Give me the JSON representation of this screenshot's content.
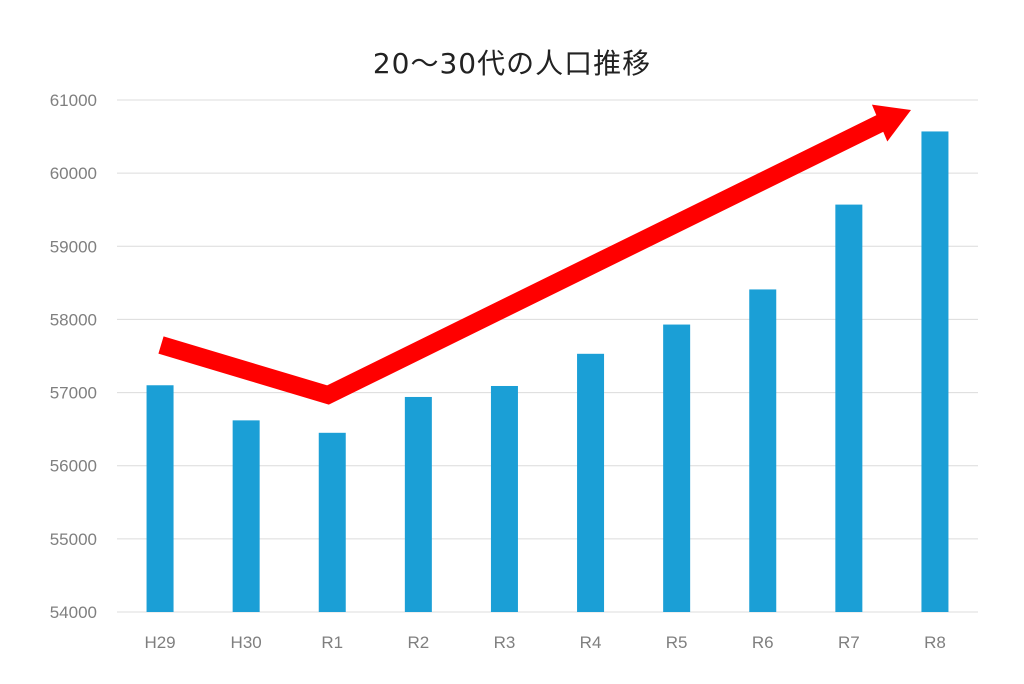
{
  "chart_data": {
    "type": "bar",
    "title": "20～30代の人口推移",
    "xlabel": "",
    "ylabel": "",
    "categories": [
      "H29",
      "H30",
      "R1",
      "R2",
      "R3",
      "R4",
      "R5",
      "R6",
      "R7",
      "R8"
    ],
    "series": [
      {
        "values": [
          57100,
          56620,
          56450,
          56940,
          57090,
          57530,
          57930,
          58410,
          59570,
          60570
        ]
      }
    ],
    "ylim": [
      54000,
      61000
    ],
    "yticks": [
      "54000",
      "55000",
      "56000",
      "57000",
      "58000",
      "59000",
      "60000",
      "61000"
    ],
    "grid": true,
    "legend": "none",
    "bar_color": "#1b9fd6",
    "annotation": {
      "type": "trend-arrow",
      "color": "#ff0000"
    }
  }
}
